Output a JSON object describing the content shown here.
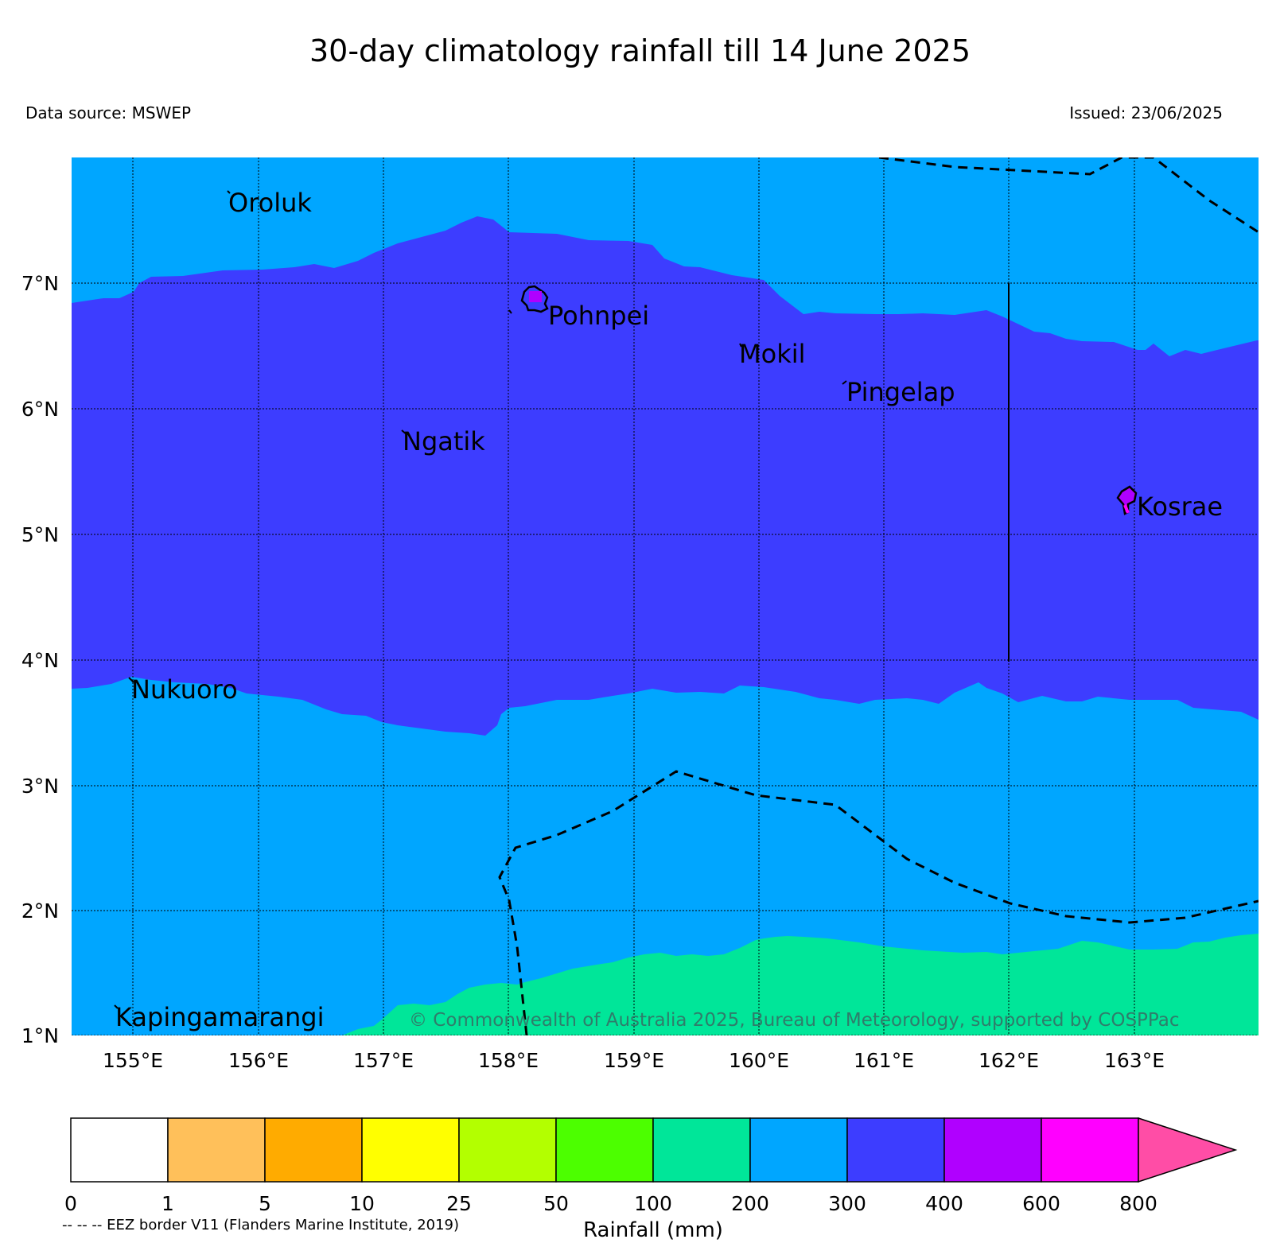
{
  "title": "30-day climatology rainfall till 14 June 2025",
  "data_source": "Data source: MSWEP",
  "issued": "Issued: 23/06/2025",
  "copyright": "© Commonwealth of Australia 2025, Bureau of Meteorology, supported by COSPPac",
  "eez_note": "-- -- -- EEZ border V11 (Flanders Marine Institute, 2019)",
  "map": {
    "lon_range": [
      154.5,
      164.0
    ],
    "lat_range": [
      1.0,
      8.0
    ],
    "lon_ticks": [
      "155°E",
      "156°E",
      "157°E",
      "158°E",
      "159°E",
      "160°E",
      "161°E",
      "162°E",
      "163°E"
    ],
    "lat_ticks": [
      "1°N",
      "2°N",
      "3°N",
      "4°N",
      "5°N",
      "6°N",
      "7°N"
    ],
    "colors": {
      "band_200_300": "#00a6ff",
      "band_300_400": "#3d3dff",
      "band_100_200": "#00e699",
      "band_400_600": "#b000ff"
    },
    "places": [
      {
        "name": "Oroluk",
        "lon": 155.75,
        "lat": 7.55
      },
      {
        "name": "Pohnpei",
        "lon": 158.35,
        "lat": 6.77
      },
      {
        "name": "Mokil",
        "lon": 159.85,
        "lat": 6.45
      },
      {
        "name": "Pingelap",
        "lon": 160.7,
        "lat": 6.1
      },
      {
        "name": "Ngatik",
        "lon": 157.15,
        "lat": 5.72
      },
      {
        "name": "Kosrae",
        "lon": 163.05,
        "lat": 5.22
      },
      {
        "name": "Nukuoro",
        "lon": 154.95,
        "lat": 3.75
      },
      {
        "name": "Kapingamarangi",
        "lon": 154.8,
        "lat": 1.05
      }
    ]
  },
  "legend": {
    "label": "Rainfall (mm)",
    "ticks": [
      "0",
      "1",
      "5",
      "10",
      "25",
      "50",
      "100",
      "200",
      "300",
      "400",
      "600",
      "800"
    ],
    "colors": [
      "#ffffff",
      "#ffc05a",
      "#ffab00",
      "#ffff00",
      "#b3ff00",
      "#4cff00",
      "#00e699",
      "#00a6ff",
      "#3d3dff",
      "#b000ff",
      "#ff00ff",
      "#ff4da6"
    ]
  }
}
